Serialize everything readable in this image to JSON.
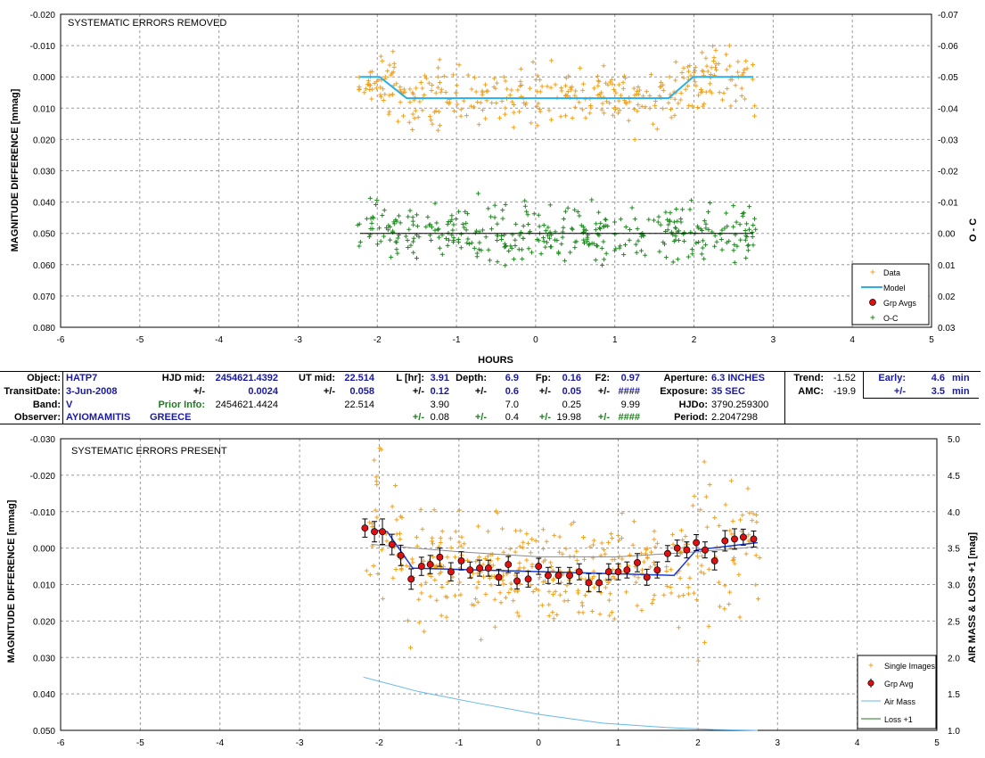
{
  "colors": {
    "data": "#f0a020",
    "model": "#2ab0e6",
    "oc": "#1e8a1e",
    "grp": "#e01010",
    "grp_line": "#1a3ad0",
    "airmass": "#66b8e8",
    "loss": "#1e7a1e",
    "label_blue": "#1a1aa0",
    "label_green": "#1f7a1f"
  },
  "info_table": {
    "row1": {
      "object_label": "Object:",
      "object_value": "HATP7",
      "hjd_mid_label": "HJD mid:",
      "hjd_mid_value": "2454621.4392",
      "ut_mid_label": "UT mid:",
      "ut_mid_value": "22.514",
      "l_hr_label": "L [hr]:",
      "l_hr_value": "3.91",
      "depth_label": "Depth:",
      "depth_value": "6.9",
      "fp_label": "Fp:",
      "fp_value": "0.16",
      "f2_label": "F2:",
      "f2_value": "0.97",
      "aperture_label": "Aperture:",
      "aperture_value": "6.3 INCHES",
      "trend_label": "Trend:",
      "trend_value": "-1.52",
      "early_label": "Early:",
      "early_value": "4.6",
      "early_unit": "min"
    },
    "row2": {
      "transit_date_label": "TransitDate:",
      "transit_date_value": "3-Jun-2008",
      "pm1": "+/-",
      "hjd_err": "0.0024",
      "pm2": "+/-",
      "ut_err": "0.058",
      "pm3": "+/-",
      "l_err": "0.12",
      "pm4": "+/-",
      "depth_err": "0.6",
      "pm5": "+/-",
      "fp_err": "0.05",
      "pm6": "+/-",
      "f2_err": "####",
      "exposure_label": "Exposure:",
      "exposure_value": "35 SEC",
      "amc_label": "AMC:",
      "amc_value": "-19.9",
      "pm7": "+/-",
      "early_err": "3.5",
      "early_err_unit": "min"
    },
    "row3": {
      "band_label": "Band:",
      "band_value": "V",
      "prior_label": "Prior Info:",
      "prior_hjd": "2454621.4424",
      "prior_ut": "22.514",
      "prior_l": "3.90",
      "prior_depth": "7.0",
      "prior_fp": "0.25",
      "prior_f2": "9.99",
      "hjdo_label": "HJDo:",
      "hjdo_value": "3790.259300"
    },
    "row4": {
      "observer_label": "Observer:",
      "observer_value": "AYIOMAMITIS",
      "location_value": "GREECE",
      "pm1": "+/-",
      "l_err": "0.08",
      "pm2": "+/-",
      "depth_err": "0.4",
      "pm3": "+/-",
      "fp_err": "19.98",
      "pm4": "+/-",
      "f2_err": "####",
      "period_label": "Period:",
      "period_value": "2.2047298"
    }
  },
  "chart_data": [
    {
      "type": "scatter",
      "title": "SYSTEMATIC ERRORS REMOVED",
      "xlabel": "HOURS",
      "ylabel": "MAGNITUDE DIFFERENCE [mmag]",
      "y2label": "O - C",
      "xlim": [
        -6,
        5
      ],
      "ylim": [
        0.08,
        -0.02
      ],
      "y2lim": [
        0.03,
        -0.07
      ],
      "x_ticks": [
        "-6",
        "-5",
        "-4",
        "-3",
        "-2",
        "-1",
        "0",
        "1",
        "2",
        "3",
        "4",
        "5"
      ],
      "y_ticks": [
        "-0.020",
        "-0.010",
        "0.000",
        "0.010",
        "0.020",
        "0.030",
        "0.040",
        "0.050",
        "0.060",
        "0.070",
        "0.080"
      ],
      "y2_ticks": [
        "-0.07",
        "-0.06",
        "-0.05",
        "-0.04",
        "-0.03",
        "-0.02",
        "-0.01",
        "0.00",
        "0.01",
        "0.02",
        "0.03"
      ],
      "grid": true,
      "legend_position": "bottom-right",
      "legend": [
        "Data",
        "Model",
        "Grp Avgs",
        "O-C"
      ],
      "data_range": [
        -2.25,
        2.78
      ],
      "series": [
        {
          "name": "Data",
          "kind": "scatter",
          "scatter": 0.0045
        },
        {
          "name": "O-C",
          "kind": "scatter",
          "offset": 0.05,
          "scatter": 0.0045
        },
        {
          "name": "Model",
          "kind": "line",
          "x": [
            -2.22,
            -1.97,
            -1.63,
            1.68,
            1.99,
            2.75
          ],
          "y": [
            0.0,
            0.0,
            0.0068,
            0.0068,
            0.0,
            0.0
          ]
        },
        {
          "name": "O-C baseline",
          "kind": "line",
          "x": [
            -2.22,
            2.75
          ],
          "y": [
            0.05,
            0.05
          ]
        }
      ]
    },
    {
      "type": "scatter",
      "title": "SYSTEMATIC ERRORS PRESENT",
      "xlabel": "",
      "ylabel": "MAGNITUDE DIFFERENCE [mmag]",
      "y2label": "AIR MASS & LOSS +1 [mag]",
      "xlim": [
        -6,
        5
      ],
      "ylim": [
        0.05,
        -0.03
      ],
      "y2lim": [
        1.0,
        5.0
      ],
      "x_ticks": [
        "-6",
        "-5",
        "-4",
        "-3",
        "-2",
        "-1",
        "0",
        "1",
        "2",
        "3",
        "4",
        "5"
      ],
      "y_ticks": [
        "-0.030",
        "-0.020",
        "-0.010",
        "0.000",
        "0.010",
        "0.020",
        "0.030",
        "0.040",
        "0.050"
      ],
      "y2_ticks": [
        "5.0",
        "4.5",
        "4.0",
        "3.5",
        "3.0",
        "2.5",
        "2.0",
        "1.5",
        "1.0"
      ],
      "grid": true,
      "legend_position": "bottom-right",
      "legend": [
        "Single Images",
        "Grp Avg",
        "Air Mass",
        "Loss +1"
      ],
      "data_range": [
        -2.2,
        2.78
      ],
      "grp_avg": {
        "x": [
          -2.18,
          -2.06,
          -1.96,
          -1.84,
          -1.73,
          -1.6,
          -1.47,
          -1.36,
          -1.24,
          -1.1,
          -0.97,
          -0.86,
          -0.74,
          -0.63,
          -0.5,
          -0.38,
          -0.27,
          -0.13,
          0.0,
          0.12,
          0.25,
          0.39,
          0.51,
          0.63,
          0.76,
          0.88,
          1.0,
          1.11,
          1.24,
          1.36,
          1.49,
          1.62,
          1.74,
          1.86,
          1.98,
          2.09,
          2.21,
          2.34,
          2.46,
          2.57,
          2.7
        ],
        "y": [
          -0.0055,
          -0.0045,
          -0.0045,
          -0.001,
          0.002,
          0.0085,
          0.005,
          0.0045,
          0.0025,
          0.0065,
          0.0035,
          0.006,
          0.0055,
          0.0055,
          0.008,
          0.0045,
          0.009,
          0.0085,
          0.005,
          0.0075,
          0.0075,
          0.0075,
          0.0065,
          0.0095,
          0.0095,
          0.0065,
          0.0065,
          0.006,
          0.004,
          0.008,
          0.006,
          0.0015,
          0.0,
          0.0005,
          -0.0015,
          0.0005,
          0.0035,
          -0.002,
          -0.0025,
          -0.003,
          -0.0025
        ],
        "err": [
          0.0025,
          0.0028,
          0.0035,
          0.0028,
          0.0028,
          0.0028,
          0.0025,
          0.0025,
          0.0025,
          0.0025,
          0.0025,
          0.0022,
          0.0022,
          0.0022,
          0.0022,
          0.0022,
          0.0022,
          0.0022,
          0.0022,
          0.0022,
          0.0022,
          0.0022,
          0.0022,
          0.0025,
          0.0025,
          0.0022,
          0.0022,
          0.0022,
          0.0025,
          0.0022,
          0.0022,
          0.0022,
          0.0022,
          0.0022,
          0.0022,
          0.0022,
          0.0025,
          0.0028,
          0.0028,
          0.0022,
          0.0022
        ]
      },
      "model_line": {
        "x": [
          -2.1,
          -1.9,
          -1.58,
          1.7,
          1.98,
          2.75
        ],
        "y": [
          -0.005,
          -0.0045,
          0.0055,
          0.0075,
          0.0005,
          -0.0015
        ]
      },
      "loss_line": {
        "x": [
          -2.1,
          -1.0,
          0.0,
          1.0,
          2.0,
          2.75
        ],
        "y": [
          3.55,
          3.45,
          3.38,
          3.38,
          3.45,
          3.52
        ]
      },
      "air_mass": {
        "x": [
          -2.2,
          -1.5,
          -0.8,
          0.0,
          0.8,
          1.6,
          2.2,
          2.75
        ],
        "y": [
          1.73,
          1.53,
          1.38,
          1.22,
          1.1,
          1.04,
          1.01,
          1.0
        ]
      }
    }
  ]
}
